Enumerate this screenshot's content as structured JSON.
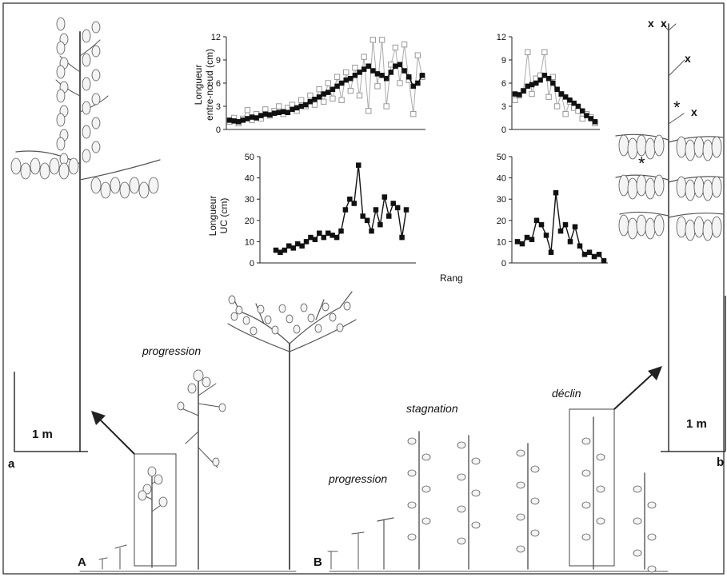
{
  "figure": {
    "letters": {
      "A": "A",
      "B": "B",
      "a": "a",
      "b": "b"
    },
    "scale_left": "1 m",
    "scale_right": "1 m",
    "phases": {
      "progression_A": "progression",
      "progression_B": "progression",
      "stagnation": "stagnation",
      "declin": "déclin"
    },
    "x_marks": [
      "x",
      "x",
      "x",
      "x"
    ],
    "asterisk": "*"
  },
  "chart_data": [
    {
      "type": "line",
      "ylabel": "Longueur entre-nœud (cm)",
      "ylabel_lines": [
        "Longueur",
        "entre-nœud (cm)"
      ],
      "ylim": [
        0,
        12
      ],
      "yticks": [
        "0",
        "3",
        "6",
        "9",
        "12"
      ],
      "series": [
        {
          "values": [
            1.2,
            1.1,
            1.0,
            1.2,
            1.4,
            1.6,
            1.5,
            1.8,
            2.0,
            1.9,
            2.1,
            2.2,
            2.3,
            2.2,
            2.6,
            2.8,
            3.0,
            3.2,
            3.6,
            3.9,
            4.2,
            4.6,
            4.8,
            5.2,
            5.6,
            6.0,
            6.4,
            6.6,
            7.0,
            7.4,
            7.8,
            8.2,
            7.6,
            7.2,
            7.0,
            6.6,
            7.4,
            8.2,
            8.4,
            7.6,
            6.8,
            5.6,
            6.0,
            7.0
          ]
        },
        {
          "values": [
            1.0,
            1.5,
            0.8,
            1.4,
            2.5,
            1.2,
            2.0,
            1.4,
            2.6,
            1.8,
            2.4,
            3.0,
            2.0,
            2.8,
            3.2,
            2.4,
            3.8,
            3.0,
            4.4,
            3.2,
            5.2,
            3.6,
            6.0,
            4.0,
            6.8,
            3.8,
            7.4,
            5.0,
            8.0,
            4.4,
            9.4,
            2.4,
            11.6,
            5.6,
            11.6,
            3.0,
            8.4,
            10.6,
            6.0,
            11.0,
            6.4,
            2.0,
            9.6,
            6.8
          ]
        }
      ]
    },
    {
      "type": "line",
      "ylabel": "Longueur UC (cm)",
      "ylabel_lines": [
        "Longueur",
        "UC (cm)"
      ],
      "xlabel": "Rang",
      "ylim": [
        0,
        50
      ],
      "yticks": [
        "0",
        "10",
        "20",
        "30",
        "40",
        "50"
      ],
      "series": [
        {
          "values": [
            6,
            5,
            6,
            8,
            7,
            9,
            8,
            10,
            12,
            11,
            14,
            12,
            14,
            13,
            12,
            15,
            25,
            30,
            28,
            46,
            22,
            20,
            15,
            25,
            18,
            31,
            22,
            28,
            26,
            12,
            25
          ]
        }
      ]
    },
    {
      "type": "line",
      "ylim": [
        0,
        12
      ],
      "yticks": [
        "0",
        "3",
        "6",
        "9",
        "12"
      ],
      "series": [
        {
          "values": [
            4.6,
            4.5,
            5.0,
            5.6,
            5.8,
            6.0,
            6.4,
            7.0,
            6.6,
            6.0,
            5.2,
            4.6,
            4.2,
            3.8,
            3.4,
            3.0,
            2.4,
            1.8,
            1.4,
            1.0
          ]
        },
        {
          "values": [
            3.8,
            4.4,
            5.0,
            10.0,
            4.6,
            6.6,
            7.0,
            10.0,
            4.2,
            6.8,
            3.0,
            4.6,
            2.0,
            3.6,
            2.8,
            2.4,
            1.4,
            2.0,
            1.6,
            0.8
          ]
        }
      ]
    },
    {
      "type": "line",
      "ylim": [
        0,
        50
      ],
      "yticks": [
        "0",
        "10",
        "20",
        "30",
        "40",
        "50"
      ],
      "series": [
        {
          "values": [
            10,
            9,
            12,
            11,
            20,
            18,
            13,
            5,
            33,
            15,
            18,
            10,
            17,
            8,
            4,
            5,
            3,
            4,
            1
          ]
        }
      ]
    }
  ]
}
